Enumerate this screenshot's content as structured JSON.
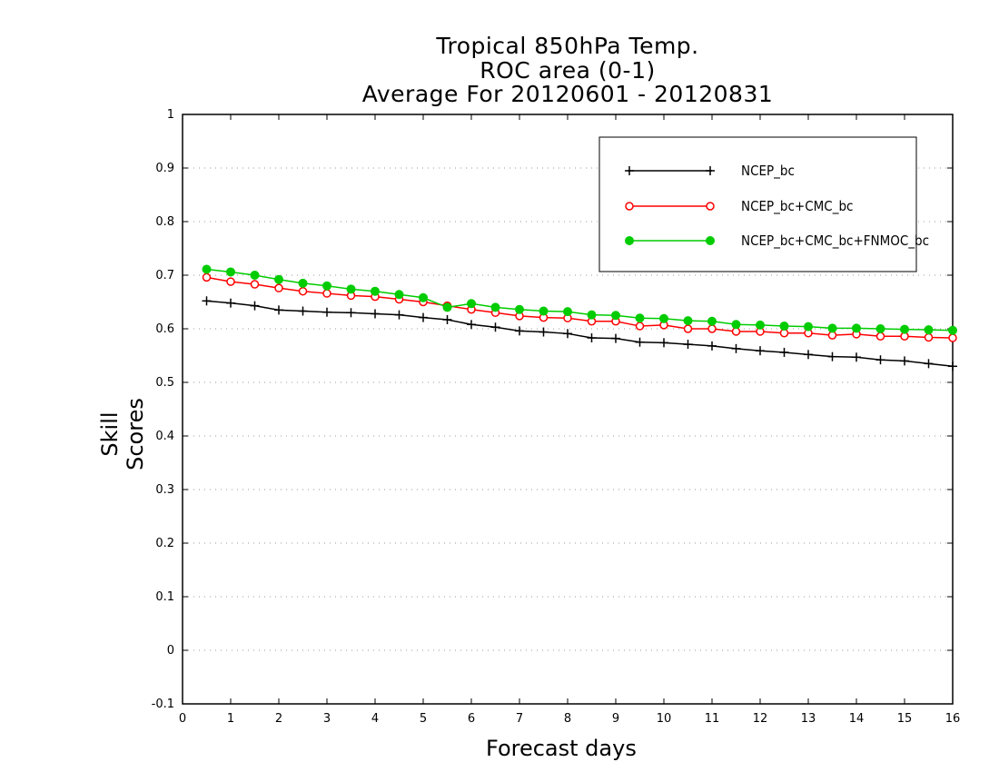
{
  "chart_data": {
    "type": "line",
    "title_lines": [
      "Tropical 850hPa Temp.",
      "ROC area (0-1)",
      "Average For 20120601 - 20120831"
    ],
    "xlabel": "Forecast days",
    "ylabel": "Skill Scores",
    "xlim": [
      0,
      16
    ],
    "ylim": [
      -0.1,
      1
    ],
    "xticks": [
      "0",
      "1",
      "2",
      "3",
      "4",
      "5",
      "6",
      "7",
      "8",
      "9",
      "10",
      "11",
      "12",
      "13",
      "14",
      "15",
      "16"
    ],
    "yticks": [
      "-0.1",
      "0",
      "0.1",
      "0.2",
      "0.3",
      "0.4",
      "0.5",
      "0.6",
      "0.7",
      "0.8",
      "0.9",
      "1"
    ],
    "grid": "horizontal dotted",
    "legend_position": "top-right",
    "x": [
      0.5,
      1,
      1.5,
      2,
      2.5,
      3,
      3.5,
      4,
      4.5,
      5,
      5.5,
      6,
      6.5,
      7,
      7.5,
      8,
      8.5,
      9,
      9.5,
      10,
      10.5,
      11,
      11.5,
      12,
      12.5,
      13,
      13.5,
      14,
      14.5,
      15,
      15.5,
      16
    ],
    "series": [
      {
        "name": "NCEP_bc",
        "color": "#000000",
        "marker": "plus",
        "values": [
          0.652,
          0.648,
          0.643,
          0.635,
          0.633,
          0.631,
          0.63,
          0.628,
          0.626,
          0.621,
          0.617,
          0.608,
          0.603,
          0.596,
          0.594,
          0.591,
          0.583,
          0.582,
          0.575,
          0.574,
          0.571,
          0.568,
          0.563,
          0.559,
          0.556,
          0.552,
          0.548,
          0.547,
          0.542,
          0.54,
          0.535,
          0.53
        ]
      },
      {
        "name": "NCEP_bc+CMC_bc",
        "color": "#ff0000",
        "marker": "open-circle",
        "values": [
          0.696,
          0.688,
          0.683,
          0.676,
          0.67,
          0.666,
          0.662,
          0.66,
          0.655,
          0.65,
          0.643,
          0.636,
          0.63,
          0.624,
          0.621,
          0.62,
          0.614,
          0.614,
          0.605,
          0.607,
          0.6,
          0.6,
          0.595,
          0.595,
          0.592,
          0.592,
          0.588,
          0.59,
          0.586,
          0.586,
          0.584,
          0.583
        ]
      },
      {
        "name": "NCEP_bc+CMC_bc+FNMOC_bc",
        "color": "#00cc00",
        "marker": "filled-circle",
        "values": [
          0.711,
          0.706,
          0.7,
          0.692,
          0.685,
          0.68,
          0.674,
          0.67,
          0.664,
          0.658,
          0.64,
          0.647,
          0.64,
          0.636,
          0.633,
          0.632,
          0.626,
          0.625,
          0.62,
          0.619,
          0.615,
          0.614,
          0.608,
          0.607,
          0.605,
          0.604,
          0.601,
          0.601,
          0.6,
          0.599,
          0.598,
          0.597
        ]
      }
    ]
  }
}
